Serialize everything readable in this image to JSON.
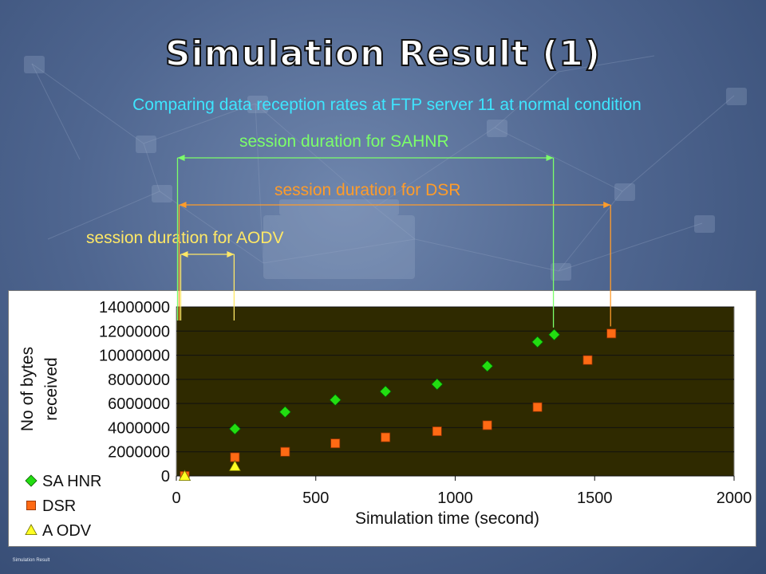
{
  "slide": {
    "title": "Simulation Result (1)",
    "subtitle": "Comparing data reception rates at FTP server 11 at normal condition",
    "footer": "Simulation Result"
  },
  "annotations": {
    "sahnr": "session duration for SAHNR",
    "dsr": "session duration for DSR",
    "aodv": "session duration for AODV"
  },
  "colors": {
    "sahnr": "#22dd11",
    "dsr": "#ff6a14",
    "aodv": "#ffff22",
    "plot_bg": "#2f2a00",
    "annotation_sahnr": "#7CFF6A",
    "annotation_dsr": "#ff9c2a",
    "annotation_aodv": "#ffe866"
  },
  "chart_data": {
    "type": "scatter",
    "xlabel": "Simulation time (second)",
    "ylabel_line1": "No of bytes",
    "ylabel_line2": "received",
    "xlim": [
      0,
      2000
    ],
    "ylim": [
      0,
      14000000
    ],
    "xticks": [
      0,
      500,
      1000,
      1500,
      2000
    ],
    "yticks": [
      0,
      2000000,
      4000000,
      6000000,
      8000000,
      10000000,
      12000000,
      14000000
    ],
    "grid": "horizontal",
    "legend_position": "bottom-left",
    "series": [
      {
        "name": "SA HNR",
        "marker": "diamond",
        "points": [
          [
            210,
            3900000
          ],
          [
            390,
            5300000
          ],
          [
            570,
            6300000
          ],
          [
            750,
            7000000
          ],
          [
            935,
            7600000
          ],
          [
            1115,
            9100000
          ],
          [
            1295,
            11100000
          ],
          [
            1355,
            11700000
          ]
        ]
      },
      {
        "name": "DSR",
        "marker": "square",
        "points": [
          [
            30,
            0
          ],
          [
            210,
            1550000
          ],
          [
            390,
            2000000
          ],
          [
            570,
            2700000
          ],
          [
            750,
            3200000
          ],
          [
            935,
            3700000
          ],
          [
            1115,
            4200000
          ],
          [
            1295,
            5700000
          ],
          [
            1475,
            9600000
          ],
          [
            1560,
            11800000
          ]
        ]
      },
      {
        "name": "A ODV",
        "marker": "triangle",
        "points": [
          [
            30,
            0
          ],
          [
            210,
            800000
          ]
        ]
      }
    ]
  }
}
